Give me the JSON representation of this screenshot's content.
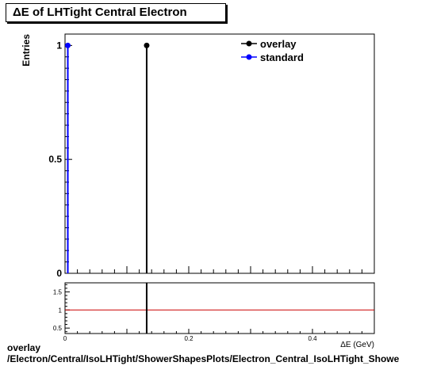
{
  "title": "ΔE of LHTight Central  Electron",
  "footer": {
    "line1": "overlay",
    "line2": "/Electron/Central/IsoLHTight/ShowerShapesPlots/Electron_Central_IsoLHTight_Showe"
  },
  "colors": {
    "overlay": "#000000",
    "standard": "#0000ff",
    "ratio_line": "#cc0000"
  },
  "chart_data": [
    {
      "type": "scatter",
      "title": "ΔE of LHTight Central  Electron",
      "ylabel": "Entries",
      "xlim": [
        0,
        0.5
      ],
      "ylim": [
        0,
        1.05
      ],
      "y_ticks": [
        "0",
        "0.5",
        "1"
      ],
      "legend": {
        "position": "top-right",
        "entries": [
          "overlay",
          "standard"
        ]
      },
      "series": [
        {
          "name": "overlay",
          "x": [
            0.132
          ],
          "y": [
            1
          ]
        },
        {
          "name": "standard",
          "x": [
            0.0045
          ],
          "y": [
            1
          ]
        }
      ]
    },
    {
      "type": "line",
      "xlabel": "ΔE (GeV)",
      "xlim": [
        0,
        0.5
      ],
      "ylim": [
        0.35,
        1.75
      ],
      "x_ticks": [
        "0",
        "0.2",
        "0.4"
      ],
      "y_ticks": [
        "0.5",
        "1",
        "1.5"
      ],
      "reference_y": 1,
      "spike_x": 0.132
    }
  ]
}
